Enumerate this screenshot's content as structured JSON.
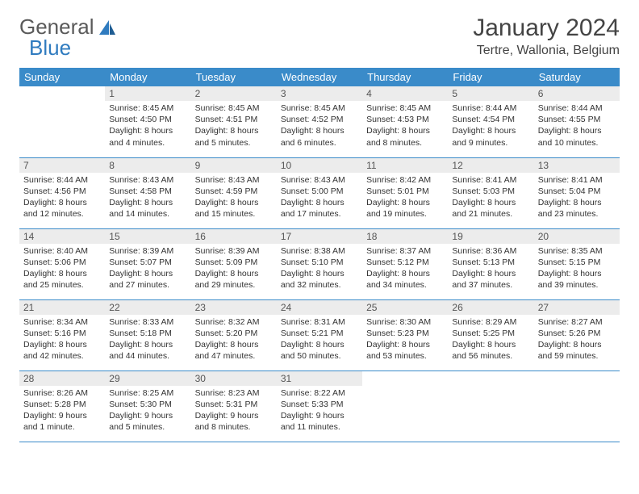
{
  "brand": {
    "part1": "General",
    "part2": "Blue"
  },
  "title": "January 2024",
  "location": "Tertre, Wallonia, Belgium",
  "colors": {
    "header_bg": "#3a8bc9",
    "header_text": "#ffffff",
    "daynum_bg": "#ececec",
    "border": "#3a8bc9",
    "logo_gray": "#5a5a5a",
    "logo_blue": "#2f7bbf"
  },
  "weekdays": [
    "Sunday",
    "Monday",
    "Tuesday",
    "Wednesday",
    "Thursday",
    "Friday",
    "Saturday"
  ],
  "weeks": [
    [
      {
        "empty": true
      },
      {
        "num": "1",
        "sunrise": "Sunrise: 8:45 AM",
        "sunset": "Sunset: 4:50 PM",
        "day1": "Daylight: 8 hours",
        "day2": "and 4 minutes."
      },
      {
        "num": "2",
        "sunrise": "Sunrise: 8:45 AM",
        "sunset": "Sunset: 4:51 PM",
        "day1": "Daylight: 8 hours",
        "day2": "and 5 minutes."
      },
      {
        "num": "3",
        "sunrise": "Sunrise: 8:45 AM",
        "sunset": "Sunset: 4:52 PM",
        "day1": "Daylight: 8 hours",
        "day2": "and 6 minutes."
      },
      {
        "num": "4",
        "sunrise": "Sunrise: 8:45 AM",
        "sunset": "Sunset: 4:53 PM",
        "day1": "Daylight: 8 hours",
        "day2": "and 8 minutes."
      },
      {
        "num": "5",
        "sunrise": "Sunrise: 8:44 AM",
        "sunset": "Sunset: 4:54 PM",
        "day1": "Daylight: 8 hours",
        "day2": "and 9 minutes."
      },
      {
        "num": "6",
        "sunrise": "Sunrise: 8:44 AM",
        "sunset": "Sunset: 4:55 PM",
        "day1": "Daylight: 8 hours",
        "day2": "and 10 minutes."
      }
    ],
    [
      {
        "num": "7",
        "sunrise": "Sunrise: 8:44 AM",
        "sunset": "Sunset: 4:56 PM",
        "day1": "Daylight: 8 hours",
        "day2": "and 12 minutes."
      },
      {
        "num": "8",
        "sunrise": "Sunrise: 8:43 AM",
        "sunset": "Sunset: 4:58 PM",
        "day1": "Daylight: 8 hours",
        "day2": "and 14 minutes."
      },
      {
        "num": "9",
        "sunrise": "Sunrise: 8:43 AM",
        "sunset": "Sunset: 4:59 PM",
        "day1": "Daylight: 8 hours",
        "day2": "and 15 minutes."
      },
      {
        "num": "10",
        "sunrise": "Sunrise: 8:43 AM",
        "sunset": "Sunset: 5:00 PM",
        "day1": "Daylight: 8 hours",
        "day2": "and 17 minutes."
      },
      {
        "num": "11",
        "sunrise": "Sunrise: 8:42 AM",
        "sunset": "Sunset: 5:01 PM",
        "day1": "Daylight: 8 hours",
        "day2": "and 19 minutes."
      },
      {
        "num": "12",
        "sunrise": "Sunrise: 8:41 AM",
        "sunset": "Sunset: 5:03 PM",
        "day1": "Daylight: 8 hours",
        "day2": "and 21 minutes."
      },
      {
        "num": "13",
        "sunrise": "Sunrise: 8:41 AM",
        "sunset": "Sunset: 5:04 PM",
        "day1": "Daylight: 8 hours",
        "day2": "and 23 minutes."
      }
    ],
    [
      {
        "num": "14",
        "sunrise": "Sunrise: 8:40 AM",
        "sunset": "Sunset: 5:06 PM",
        "day1": "Daylight: 8 hours",
        "day2": "and 25 minutes."
      },
      {
        "num": "15",
        "sunrise": "Sunrise: 8:39 AM",
        "sunset": "Sunset: 5:07 PM",
        "day1": "Daylight: 8 hours",
        "day2": "and 27 minutes."
      },
      {
        "num": "16",
        "sunrise": "Sunrise: 8:39 AM",
        "sunset": "Sunset: 5:09 PM",
        "day1": "Daylight: 8 hours",
        "day2": "and 29 minutes."
      },
      {
        "num": "17",
        "sunrise": "Sunrise: 8:38 AM",
        "sunset": "Sunset: 5:10 PM",
        "day1": "Daylight: 8 hours",
        "day2": "and 32 minutes."
      },
      {
        "num": "18",
        "sunrise": "Sunrise: 8:37 AM",
        "sunset": "Sunset: 5:12 PM",
        "day1": "Daylight: 8 hours",
        "day2": "and 34 minutes."
      },
      {
        "num": "19",
        "sunrise": "Sunrise: 8:36 AM",
        "sunset": "Sunset: 5:13 PM",
        "day1": "Daylight: 8 hours",
        "day2": "and 37 minutes."
      },
      {
        "num": "20",
        "sunrise": "Sunrise: 8:35 AM",
        "sunset": "Sunset: 5:15 PM",
        "day1": "Daylight: 8 hours",
        "day2": "and 39 minutes."
      }
    ],
    [
      {
        "num": "21",
        "sunrise": "Sunrise: 8:34 AM",
        "sunset": "Sunset: 5:16 PM",
        "day1": "Daylight: 8 hours",
        "day2": "and 42 minutes."
      },
      {
        "num": "22",
        "sunrise": "Sunrise: 8:33 AM",
        "sunset": "Sunset: 5:18 PM",
        "day1": "Daylight: 8 hours",
        "day2": "and 44 minutes."
      },
      {
        "num": "23",
        "sunrise": "Sunrise: 8:32 AM",
        "sunset": "Sunset: 5:20 PM",
        "day1": "Daylight: 8 hours",
        "day2": "and 47 minutes."
      },
      {
        "num": "24",
        "sunrise": "Sunrise: 8:31 AM",
        "sunset": "Sunset: 5:21 PM",
        "day1": "Daylight: 8 hours",
        "day2": "and 50 minutes."
      },
      {
        "num": "25",
        "sunrise": "Sunrise: 8:30 AM",
        "sunset": "Sunset: 5:23 PM",
        "day1": "Daylight: 8 hours",
        "day2": "and 53 minutes."
      },
      {
        "num": "26",
        "sunrise": "Sunrise: 8:29 AM",
        "sunset": "Sunset: 5:25 PM",
        "day1": "Daylight: 8 hours",
        "day2": "and 56 minutes."
      },
      {
        "num": "27",
        "sunrise": "Sunrise: 8:27 AM",
        "sunset": "Sunset: 5:26 PM",
        "day1": "Daylight: 8 hours",
        "day2": "and 59 minutes."
      }
    ],
    [
      {
        "num": "28",
        "sunrise": "Sunrise: 8:26 AM",
        "sunset": "Sunset: 5:28 PM",
        "day1": "Daylight: 9 hours",
        "day2": "and 1 minute."
      },
      {
        "num": "29",
        "sunrise": "Sunrise: 8:25 AM",
        "sunset": "Sunset: 5:30 PM",
        "day1": "Daylight: 9 hours",
        "day2": "and 5 minutes."
      },
      {
        "num": "30",
        "sunrise": "Sunrise: 8:23 AM",
        "sunset": "Sunset: 5:31 PM",
        "day1": "Daylight: 9 hours",
        "day2": "and 8 minutes."
      },
      {
        "num": "31",
        "sunrise": "Sunrise: 8:22 AM",
        "sunset": "Sunset: 5:33 PM",
        "day1": "Daylight: 9 hours",
        "day2": "and 11 minutes."
      },
      {
        "empty": true
      },
      {
        "empty": true
      },
      {
        "empty": true
      }
    ]
  ]
}
